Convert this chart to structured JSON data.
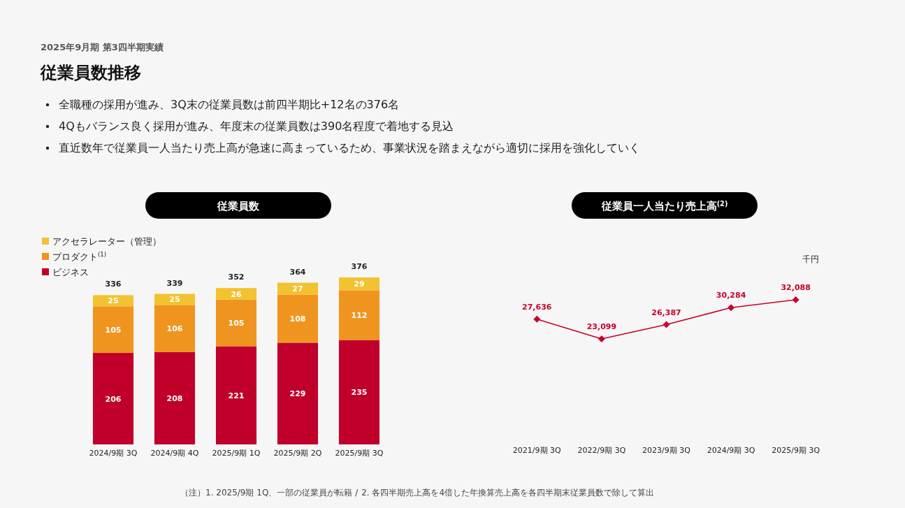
{
  "chart_data": [
    {
      "type": "bar",
      "title": "従業員数",
      "stacked": true,
      "data_labels": true,
      "legend": "top left",
      "categories": [
        "2024/9期 3Q",
        "2024/9期 4Q",
        "2025/9期 1Q",
        "2025/9期 2Q",
        "2025/9期 3Q"
      ],
      "series": [
        {
          "name": "ビジネス",
          "color": "#c0002a",
          "values": [
            206,
            208,
            221,
            229,
            235
          ]
        },
        {
          "name": "プロダクト$^{(1)}$",
          "color": "#ef951f",
          "values": [
            105,
            106,
            105,
            108,
            112
          ]
        },
        {
          "name": "アクセラレーター（管理）",
          "color": "#f2c230",
          "values": [
            25,
            25,
            26,
            27,
            29
          ]
        }
      ],
      "totals": [
        "336",
        "339",
        "352",
        "364",
        "376"
      ],
      "annotations": [
        "2025年9月期 第3四半期実績",
        "従業員数推移",
        "全職種の採用が進み、3Q末の従業員数は前四半期比+12名の376名",
        "4Qもバランス良く採用が進み、年度末の従業員数は390名程度で着地する見込",
        "直近数年で従業員一人当たり売上高が急速に高まっているため、事業状況を踏まえながら適切に採用を強化していく",
        "（注）1. 2025/9期 1Q、一部の従業員が転籍 /"
      ]
    },
    {
      "type": "line",
      "title": "従業員一人当たり売上高$^{(2)}$",
      "ylabel": "千円",
      "marker": "diamond",
      "color": "#c8002a",
      "categories": [
        "2021/9期 3Q",
        "2022/9期 3Q",
        "2023/9期 3Q",
        "2024/9期 3Q",
        "2025/9期 3Q"
      ],
      "values": [
        27636,
        23099,
        26387,
        30284,
        32088
      ],
      "value_labels": [
        "27,636",
        "23,099",
        "26,387",
        "30,284",
        "32,088"
      ],
      "annotations": [
        "2. 各四半期売上高を4倍した年換算売上高を各四半期末従業員数で除して算出"
      ]
    }
  ]
}
